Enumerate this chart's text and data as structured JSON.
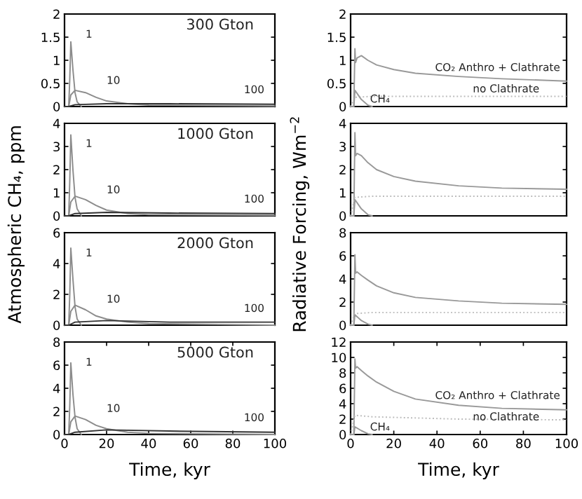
{
  "chart_data": [
    {
      "type": "line",
      "xlim": [
        0,
        100
      ],
      "ylim": [
        0,
        2
      ],
      "yticks": [
        0,
        0.5,
        1,
        1.5,
        2
      ],
      "tick_labels": "y",
      "grid": false,
      "series": [
        {
          "color": "#8c8c8c",
          "x": [
            0,
            2,
            2.5,
            3,
            4,
            5,
            6,
            8
          ],
          "values": [
            0,
            0,
            0.6,
            1.4,
            0.8,
            0.3,
            0.1,
            0
          ]
        },
        {
          "color": "#8c8c8c",
          "x": [
            0,
            2,
            3,
            5,
            10,
            15,
            20,
            30,
            40,
            100
          ],
          "values": [
            0,
            0,
            0.25,
            0.35,
            0.3,
            0.2,
            0.12,
            0.06,
            0.03,
            0.01
          ]
        },
        {
          "color": "#333333",
          "x": [
            0,
            2,
            5,
            20,
            50,
            100
          ],
          "values": [
            0,
            0,
            0.04,
            0.06,
            0.06,
            0.05
          ]
        }
      ],
      "annotations": [
        "300 Gton",
        "1",
        "10",
        "100"
      ]
    },
    {
      "type": "line",
      "xlim": [
        0,
        100
      ],
      "ylim": [
        0,
        2
      ],
      "yticks": [
        0,
        0.5,
        1,
        1.5,
        2
      ],
      "tick_labels": "y",
      "grid": false,
      "series": [
        {
          "color": "#999999",
          "x": [
            0,
            1.5,
            2,
            2.3,
            3,
            5,
            8,
            12,
            20,
            30,
            50,
            70,
            100
          ],
          "values": [
            0,
            0,
            1.25,
            0.95,
            1.05,
            1.1,
            1.0,
            0.9,
            0.8,
            0.72,
            0.65,
            0.6,
            0.55
          ]
        },
        {
          "color": "#bbbbbb",
          "line_style": "dotted",
          "x": [
            0,
            2,
            10,
            50,
            100
          ],
          "values": [
            0,
            0.2,
            0.22,
            0.22,
            0.22
          ]
        },
        {
          "color": "#999999",
          "x": [
            0,
            1.5,
            2,
            5,
            8,
            10
          ],
          "values": [
            0,
            0,
            0.35,
            0.15,
            0.03,
            0
          ]
        }
      ],
      "annotations": [
        "CO₂ Anthro + Clathrate",
        "no Clathrate",
        "CH₄"
      ]
    },
    {
      "type": "line",
      "xlim": [
        0,
        100
      ],
      "ylim": [
        0,
        4
      ],
      "yticks": [
        0,
        1,
        2,
        3,
        4
      ],
      "tick_labels": "y",
      "grid": false,
      "ylabel": "Atmospheric CH₄, ppm",
      "series": [
        {
          "color": "#8c8c8c",
          "x": [
            0,
            2,
            2.5,
            3,
            4,
            5,
            6,
            8
          ],
          "values": [
            0,
            0,
            1.5,
            3.5,
            2,
            0.8,
            0.3,
            0
          ]
        },
        {
          "color": "#8c8c8c",
          "x": [
            0,
            2,
            3,
            5,
            10,
            15,
            20,
            30,
            40,
            100
          ],
          "values": [
            0,
            0,
            0.6,
            0.85,
            0.7,
            0.45,
            0.25,
            0.1,
            0.05,
            0.02
          ]
        },
        {
          "color": "#333333",
          "x": [
            0,
            2,
            5,
            20,
            50,
            100
          ],
          "values": [
            0,
            0,
            0.1,
            0.15,
            0.12,
            0.1
          ]
        }
      ],
      "annotations": [
        "1000 Gton",
        "1",
        "10",
        "100"
      ]
    },
    {
      "type": "line",
      "xlim": [
        0,
        100
      ],
      "ylim": [
        0,
        4
      ],
      "yticks": [
        0,
        1,
        2,
        3,
        4
      ],
      "tick_labels": "y",
      "grid": false,
      "ylabel": "Radiative Forcing, Wm$^{−2}$",
      "series": [
        {
          "color": "#999999",
          "x": [
            0,
            1.5,
            2,
            2.3,
            3,
            5,
            8,
            12,
            20,
            30,
            50,
            70,
            100
          ],
          "values": [
            0,
            0,
            3.6,
            2.6,
            2.7,
            2.6,
            2.3,
            2.0,
            1.7,
            1.5,
            1.3,
            1.2,
            1.15
          ]
        },
        {
          "color": "#bbbbbb",
          "line_style": "dotted",
          "x": [
            0,
            2,
            10,
            50,
            100
          ],
          "values": [
            0,
            0.8,
            0.85,
            0.85,
            0.85
          ]
        },
        {
          "color": "#999999",
          "x": [
            0,
            1.5,
            2,
            5,
            8,
            10
          ],
          "values": [
            0,
            0,
            0.7,
            0.3,
            0.05,
            0
          ]
        }
      ]
    },
    {
      "type": "line",
      "xlim": [
        0,
        100
      ],
      "ylim": [
        0,
        6
      ],
      "yticks": [
        0,
        2,
        4,
        6
      ],
      "tick_labels": "y",
      "grid": false,
      "series": [
        {
          "color": "#8c8c8c",
          "x": [
            0,
            2,
            2.5,
            3,
            4,
            5,
            6,
            8
          ],
          "values": [
            0,
            0,
            2,
            5,
            3,
            1.2,
            0.4,
            0
          ]
        },
        {
          "color": "#8c8c8c",
          "x": [
            0,
            2,
            3,
            5,
            10,
            15,
            20,
            30,
            40,
            100
          ],
          "values": [
            0,
            0,
            0.9,
            1.3,
            1.0,
            0.6,
            0.4,
            0.2,
            0.1,
            0
          ]
        },
        {
          "color": "#333333",
          "x": [
            0,
            2,
            5,
            20,
            50,
            100
          ],
          "values": [
            0,
            0,
            0.2,
            0.3,
            0.2,
            0.2
          ]
        }
      ],
      "annotations": [
        "2000 Gton",
        "1",
        "10",
        "100"
      ]
    },
    {
      "type": "line",
      "xlim": [
        0,
        100
      ],
      "ylim": [
        0,
        8
      ],
      "yticks": [
        0,
        2,
        4,
        6,
        8
      ],
      "tick_labels": "y",
      "grid": false,
      "series": [
        {
          "color": "#999999",
          "x": [
            0,
            1.5,
            2,
            2.3,
            3,
            5,
            8,
            12,
            20,
            30,
            50,
            70,
            100
          ],
          "values": [
            0,
            0,
            6.1,
            4.5,
            4.6,
            4.3,
            3.9,
            3.4,
            2.8,
            2.4,
            2.1,
            1.9,
            1.8
          ]
        },
        {
          "color": "#bbbbbb",
          "line_style": "dotted",
          "x": [
            0,
            2,
            10,
            50,
            100
          ],
          "values": [
            0,
            1.0,
            1.1,
            1.1,
            1.1
          ]
        },
        {
          "color": "#999999",
          "x": [
            0,
            1.5,
            2,
            5,
            8,
            10
          ],
          "values": [
            0,
            0,
            0.9,
            0.4,
            0.1,
            0
          ]
        }
      ]
    },
    {
      "type": "line",
      "xlim": [
        0,
        100
      ],
      "ylim": [
        0,
        8
      ],
      "yticks": [
        0,
        2,
        4,
        6,
        8
      ],
      "xticks": [
        0,
        20,
        40,
        60,
        80,
        100
      ],
      "grid": false,
      "xlabel": "Time, kyr",
      "series": [
        {
          "color": "#8c8c8c",
          "x": [
            0,
            2,
            2.5,
            3,
            4,
            5,
            6,
            8
          ],
          "values": [
            0,
            0,
            2.5,
            6.2,
            3.5,
            1.5,
            0.5,
            0
          ]
        },
        {
          "color": "#8c8c8c",
          "x": [
            0,
            2,
            3,
            5,
            10,
            15,
            20,
            30,
            40,
            100
          ],
          "values": [
            0,
            0,
            1.1,
            1.6,
            1.3,
            0.8,
            0.5,
            0.2,
            0.1,
            0
          ]
        },
        {
          "color": "#333333",
          "x": [
            0,
            2,
            5,
            20,
            50,
            100
          ],
          "values": [
            0,
            0,
            0.2,
            0.4,
            0.3,
            0.2
          ]
        }
      ],
      "annotations": [
        "5000 Gton",
        "1",
        "10",
        "100"
      ]
    },
    {
      "type": "line",
      "xlim": [
        0,
        100
      ],
      "ylim": [
        0,
        12
      ],
      "yticks": [
        0,
        2,
        4,
        6,
        8,
        10,
        12
      ],
      "xticks": [
        0,
        20,
        40,
        60,
        80,
        100
      ],
      "grid": false,
      "xlabel": "Time, kyr",
      "series": [
        {
          "color": "#999999",
          "x": [
            0,
            1.5,
            2,
            2.3,
            3,
            5,
            8,
            12,
            20,
            30,
            50,
            70,
            100
          ],
          "values": [
            0,
            0,
            9.8,
            8.6,
            8.8,
            8.3,
            7.6,
            6.8,
            5.6,
            4.6,
            3.8,
            3.4,
            3.2
          ]
        },
        {
          "color": "#bbbbbb",
          "line_style": "dotted",
          "x": [
            0,
            2,
            10,
            50,
            100
          ],
          "values": [
            0,
            2.5,
            2.3,
            2.0,
            1.9
          ]
        },
        {
          "color": "#999999",
          "x": [
            0,
            1.5,
            2,
            5,
            8,
            10
          ],
          "values": [
            0,
            0,
            1.0,
            0.5,
            0.1,
            0
          ]
        }
      ],
      "annotations": [
        "CO₂ Anthro + Clathrate",
        "no Clathrate",
        "CH₄"
      ]
    }
  ]
}
